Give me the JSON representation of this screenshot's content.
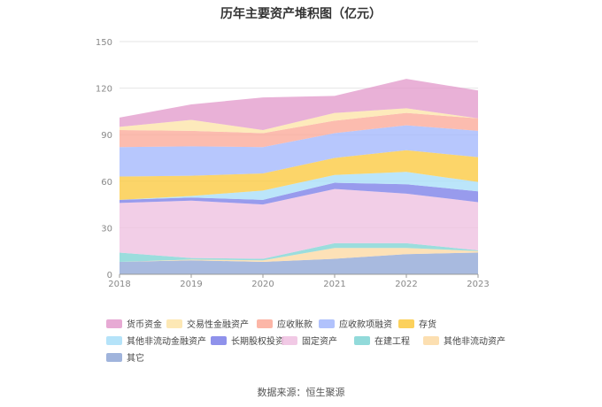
{
  "chart_data": {
    "type": "area",
    "stacked": true,
    "title": "历年主要资产堆积图（亿元）",
    "x": [
      "2018",
      "2019",
      "2020",
      "2021",
      "2022",
      "2023"
    ],
    "ylim": [
      0,
      150
    ],
    "yticks": [
      0,
      30,
      60,
      90,
      120,
      150
    ],
    "grid": true,
    "legend_position": "bottom",
    "series": [
      {
        "name": "其它",
        "color": "#8fa7d6",
        "values": [
          8,
          9,
          8,
          10,
          13,
          14
        ]
      },
      {
        "name": "其他非流动资产",
        "color": "#fcd9a3",
        "values": [
          0,
          0.5,
          1,
          7,
          4,
          1
        ]
      },
      {
        "name": "在建工程",
        "color": "#7fd3d4",
        "values": [
          6,
          1,
          1,
          3,
          3,
          0.5
        ]
      },
      {
        "name": "固定资产",
        "color": "#eec0e0",
        "values": [
          32,
          37,
          35,
          35,
          32,
          31
        ]
      },
      {
        "name": "长期股权投资",
        "color": "#7b7fe8",
        "values": [
          2,
          2,
          3,
          4,
          6,
          7
        ]
      },
      {
        "name": "其他非流动金融资产",
        "color": "#a8def8",
        "values": [
          0,
          1,
          6,
          5,
          8,
          6
        ]
      },
      {
        "name": "存货",
        "color": "#fbc93f",
        "values": [
          15,
          13,
          11,
          11,
          14,
          16
        ]
      },
      {
        "name": "应收款项融资",
        "color": "#a3b7fc",
        "values": [
          19,
          19,
          17,
          16,
          16,
          17
        ]
      },
      {
        "name": "应收账款",
        "color": "#fba998",
        "values": [
          11,
          10,
          9,
          8,
          8,
          8
        ]
      },
      {
        "name": "交易性金融资产",
        "color": "#fde4a8",
        "values": [
          2,
          7,
          2,
          5,
          3,
          0
        ]
      },
      {
        "name": "货币资金",
        "color": "#e39bcc",
        "values": [
          6,
          10,
          21,
          11,
          19,
          18
        ]
      }
    ],
    "legend_order": [
      "货币资金",
      "交易性金融资产",
      "应收账款",
      "应收款项融资",
      "存货",
      "其他非流动金融资产",
      "长期股权投资",
      "固定资产",
      "在建工程",
      "其他非流动资产",
      "其它"
    ]
  },
  "source": "数据来源：恒生聚源"
}
